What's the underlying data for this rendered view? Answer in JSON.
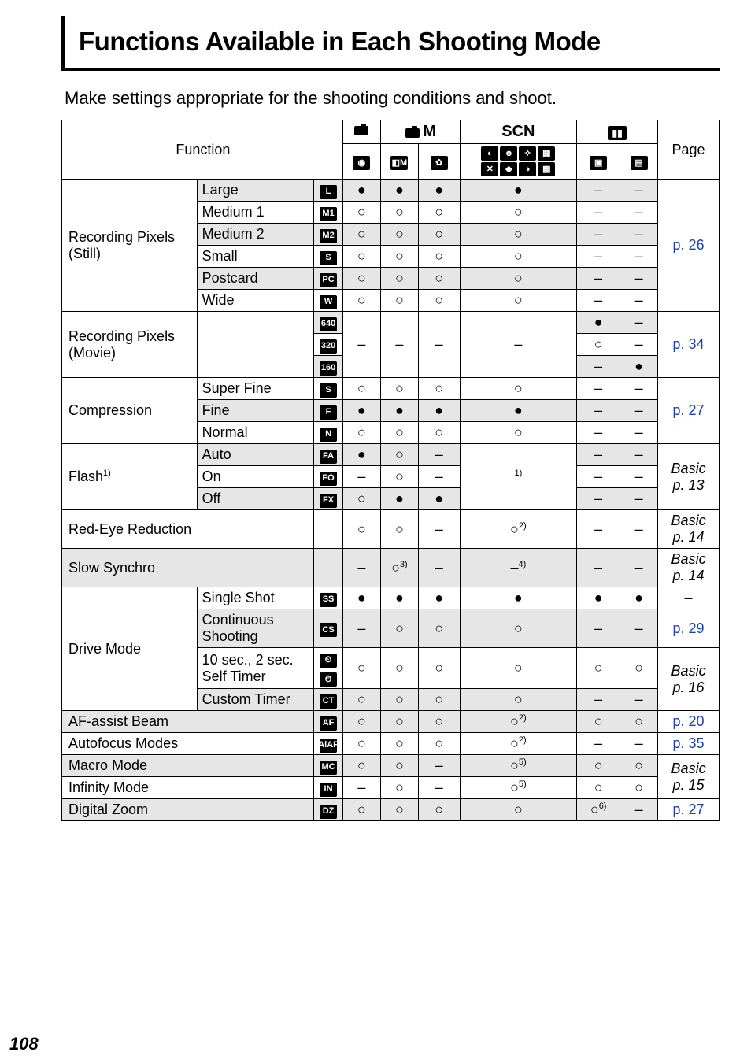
{
  "page": {
    "title": "Functions Available in Each Shooting Mode",
    "subtitle": "Make settings appropriate for the shooting conditions and shoot.",
    "page_number": "108",
    "colors": {
      "blue": "#1a3fb5",
      "gray": "#e6e6e6"
    }
  },
  "marks": {
    "filled": "●",
    "hollow": "○",
    "dash": "–"
  },
  "header": {
    "function": "Function",
    "scn": "SCN",
    "page": "Page",
    "cam_m_suffix": "M"
  },
  "rows": [
    {
      "fn": "Recording Pixels\n(Still)",
      "subs": [
        {
          "label": "Large",
          "icon": "L",
          "c": [
            "●",
            "●",
            "●",
            "●",
            "–",
            "–"
          ],
          "gray": true
        },
        {
          "label": "Medium 1",
          "icon": "M1",
          "c": [
            "○",
            "○",
            "○",
            "○",
            "–",
            "–"
          ]
        },
        {
          "label": "Medium 2",
          "icon": "M2",
          "c": [
            "○",
            "○",
            "○",
            "○",
            "–",
            "–"
          ],
          "gray": true
        },
        {
          "label": "Small",
          "icon": "S",
          "c": [
            "○",
            "○",
            "○",
            "○",
            "–",
            "–"
          ]
        },
        {
          "label": "Postcard",
          "icon": "PC",
          "c": [
            "○",
            "○",
            "○",
            "○",
            "–",
            "–"
          ],
          "gray": true
        },
        {
          "label": "Wide",
          "icon": "W",
          "c": [
            "○",
            "○",
            "○",
            "○",
            "–",
            "–"
          ]
        }
      ],
      "page": "p. 26",
      "page_blue": true
    },
    {
      "fn": "Recording Pixels\n(Movie)",
      "subs": [
        {
          "label": "",
          "icon": "640",
          "c": [
            "",
            "",
            "",
            "",
            "●",
            "–"
          ],
          "gray": true,
          "dash_span": true
        },
        {
          "label": "",
          "icon": "320",
          "c": [
            "",
            "",
            "",
            "",
            "○",
            "–"
          ]
        },
        {
          "label": "",
          "icon": "160",
          "c": [
            "",
            "",
            "",
            "",
            "–",
            "●"
          ],
          "gray": true
        }
      ],
      "dash_group": true,
      "page": "p. 34",
      "page_blue": true
    },
    {
      "fn": "Compression",
      "subs": [
        {
          "label": "Super Fine",
          "icon": "S",
          "c": [
            "○",
            "○",
            "○",
            "○",
            "–",
            "–"
          ]
        },
        {
          "label": "Fine",
          "icon": "F",
          "c": [
            "●",
            "●",
            "●",
            "●",
            "–",
            "–"
          ],
          "gray": true
        },
        {
          "label": "Normal",
          "icon": "N",
          "c": [
            "○",
            "○",
            "○",
            "○",
            "–",
            "–"
          ]
        }
      ],
      "page": "p. 27",
      "page_blue": true
    },
    {
      "fn_html": "Flash<span class=\"sup\">1)</span>",
      "subs": [
        {
          "label": "Auto",
          "icon": "FA",
          "c": [
            "●",
            "○",
            "–",
            "",
            "–",
            "–"
          ],
          "gray": true,
          "scn_note": "1)"
        },
        {
          "label": "On",
          "icon": "FO",
          "c": [
            "–",
            "○",
            "–",
            "",
            "–",
            "–"
          ]
        },
        {
          "label": "Off",
          "icon": "FX",
          "c": [
            "○",
            "●",
            "●",
            "",
            "–",
            "–"
          ],
          "gray": true
        }
      ],
      "scn_merged": "1)",
      "page": "Basic\np. 13",
      "page_italic": true
    },
    {
      "single": "Red-Eye Reduction",
      "c": [
        "○",
        "○",
        "–",
        "○2)",
        "–",
        "–"
      ],
      "scn_sup": "2)",
      "page": "Basic\np. 14",
      "page_italic": true
    },
    {
      "single": "Slow Synchro",
      "c": [
        "–",
        "○3)",
        "–",
        "–4)",
        "–",
        "–"
      ],
      "c2_sup": "3)",
      "scn_sup": "4)",
      "page": "Basic\np. 14",
      "page_italic": true,
      "gray": true
    },
    {
      "fn": "Drive Mode",
      "subs": [
        {
          "label": "Single Shot",
          "icon": "SS",
          "c": [
            "●",
            "●",
            "●",
            "●",
            "●",
            "●"
          ],
          "page": "–"
        },
        {
          "label": "Continuous\nShooting",
          "icon": "CS",
          "c": [
            "–",
            "○",
            "○",
            "○",
            "–",
            "–"
          ],
          "gray": true,
          "page": "p. 29",
          "page_blue": true
        },
        {
          "label": "10 sec., 2 sec.\nSelf Timer",
          "icon": "ST",
          "dual_icon": true,
          "c": [
            "○",
            "○",
            "○",
            "○",
            "○",
            "○"
          ],
          "page": "Basic\np. 16",
          "page_italic": true,
          "page_rowspan": 2
        },
        {
          "label": "Custom Timer",
          "icon": "CT",
          "c": [
            "○",
            "○",
            "○",
            "○",
            "–",
            "–"
          ],
          "gray": true
        }
      ]
    },
    {
      "single": "AF-assist Beam",
      "icon": "AF",
      "c": [
        "○",
        "○",
        "○",
        "○2)",
        "○",
        "○"
      ],
      "scn_sup": "2)",
      "gray": true,
      "page": "p. 20",
      "page_blue": true
    },
    {
      "single": "Autofocus Modes",
      "icon": "AiAF",
      "c": [
        "○",
        "○",
        "○",
        "○2)",
        "–",
        "–"
      ],
      "scn_sup": "2)",
      "page": "p. 35",
      "page_blue": true
    },
    {
      "single": "Macro Mode",
      "icon": "MC",
      "c": [
        "○",
        "○",
        "–",
        "○5)",
        "○",
        "○"
      ],
      "scn_sup": "5)",
      "gray": true,
      "page": "Basic",
      "page_italic": true,
      "page_rowspan": 2
    },
    {
      "single": "Infinity Mode",
      "icon": "IN",
      "c": [
        "–",
        "○",
        "–",
        "○5)",
        "○",
        "○"
      ],
      "scn_sup": "5)",
      "page_text": "p. 15"
    },
    {
      "single": "Digital Zoom",
      "icon": "DZ",
      "c": [
        "○",
        "○",
        "○",
        "○",
        "○6)",
        "–"
      ],
      "c5_sup": "6)",
      "gray": true,
      "page": "p. 27",
      "page_blue": true
    }
  ]
}
